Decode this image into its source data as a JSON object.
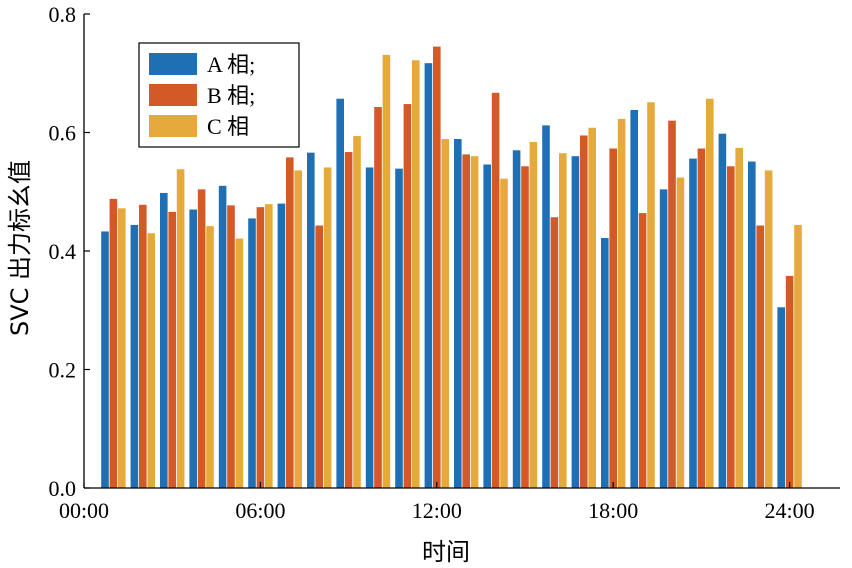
{
  "chart_data": {
    "type": "bar",
    "xlabel": "时间",
    "ylabel": "SVC 出力标幺值",
    "ylim": [
      0,
      0.8
    ],
    "yticks": [
      "0.0",
      "0.2",
      "0.4",
      "0.6",
      "0.8"
    ],
    "xtick_labels": [
      "00:00",
      "06:00",
      "12:00",
      "18:00",
      "24:00"
    ],
    "xtick_hours": [
      0,
      6,
      12,
      18,
      24
    ],
    "hours": [
      1,
      2,
      3,
      4,
      5,
      6,
      7,
      8,
      9,
      10,
      11,
      12,
      13,
      14,
      15,
      16,
      17,
      18,
      19,
      20,
      21,
      22,
      23,
      24
    ],
    "series": [
      {
        "name": "A 相;",
        "color": "#1f6fb5",
        "values": [
          0.433,
          0.444,
          0.498,
          0.47,
          0.51,
          0.455,
          0.48,
          0.566,
          0.657,
          0.541,
          0.539,
          0.717,
          0.589,
          0.546,
          0.57,
          0.612,
          0.56,
          0.422,
          0.638,
          0.504,
          0.556,
          0.598,
          0.551,
          0.305
        ]
      },
      {
        "name": "B 相;",
        "color": "#d35a27",
        "values": [
          0.488,
          0.478,
          0.466,
          0.504,
          0.477,
          0.474,
          0.558,
          0.443,
          0.567,
          0.643,
          0.648,
          0.745,
          0.563,
          0.667,
          0.543,
          0.457,
          0.595,
          0.573,
          0.464,
          0.62,
          0.573,
          0.543,
          0.443,
          0.358
        ]
      },
      {
        "name": "C 相",
        "color": "#e6a93b",
        "values": [
          0.472,
          0.43,
          0.538,
          0.442,
          0.421,
          0.479,
          0.536,
          0.541,
          0.594,
          0.731,
          0.722,
          0.589,
          0.56,
          0.522,
          0.584,
          0.565,
          0.608,
          0.623,
          0.651,
          0.524,
          0.657,
          0.574,
          0.536,
          0.444
        ]
      }
    ],
    "legend": "top-left"
  }
}
